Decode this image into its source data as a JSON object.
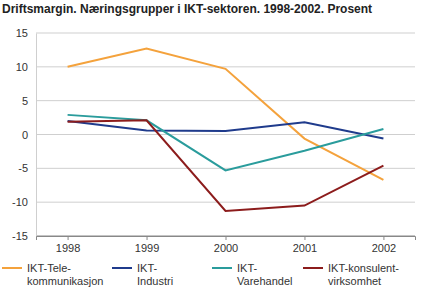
{
  "chart_data": {
    "type": "line",
    "title": "Driftsmargin. Næringsgrupper i IKT-sektoren. 1998-2002. Prosent",
    "categories": [
      "1998",
      "1999",
      "2000",
      "2001",
      "2002"
    ],
    "series": [
      {
        "name": "IKT-Tele-kommunikasjon",
        "color": "#f4a23c",
        "values": [
          10.0,
          12.7,
          9.7,
          -0.6,
          -6.7
        ]
      },
      {
        "name": "IKT-Industri",
        "color": "#1f3b8c",
        "values": [
          2.0,
          0.6,
          0.5,
          1.8,
          -0.6
        ]
      },
      {
        "name": "IKT-Varehandel",
        "color": "#2a9c9c",
        "values": [
          2.9,
          2.1,
          -5.3,
          -2.4,
          0.8
        ]
      },
      {
        "name": "IKT-konsulent-virksomhet",
        "color": "#8c1c1c",
        "values": [
          1.9,
          2.1,
          -11.3,
          -10.5,
          -4.6
        ]
      }
    ],
    "ylim": [
      -15,
      15
    ],
    "yticks": [
      -15,
      -10,
      -5,
      0,
      5,
      10,
      15
    ],
    "grid": true,
    "legend": "bottom"
  }
}
